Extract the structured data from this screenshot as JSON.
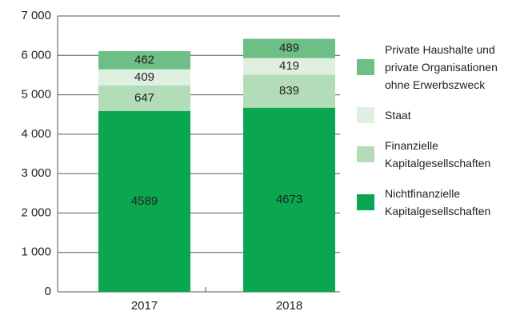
{
  "chart_data": {
    "type": "stacked_bar",
    "categories": [
      "2017",
      "2018"
    ],
    "series": [
      {
        "name": "Nichtfinanzielle Kapitalgesellschaften",
        "color": "#0aa650",
        "values": [
          4589,
          4673
        ]
      },
      {
        "name": "Finanzielle Kapitalgesellschaften",
        "color": "#b3dcb9",
        "values": [
          647,
          839
        ]
      },
      {
        "name": "Staat",
        "color": "#dff0e1",
        "values": [
          409,
          419
        ]
      },
      {
        "name": "Private Haushalte und private Organisationen ohne Erwerbszweck",
        "color": "#6dbf85",
        "values": [
          462,
          489
        ]
      }
    ],
    "ylim": [
      0,
      7000
    ],
    "yticks": [
      0,
      {
        "value": 1000,
        "label": "1 000"
      },
      {
        "value": 2000,
        "label": "2 000"
      },
      {
        "value": 3000,
        "label": "3 000"
      },
      {
        "value": 4000,
        "label": "4 000"
      },
      {
        "value": 5000,
        "label": "5 000"
      },
      {
        "value": 6000,
        "label": "6 000"
      },
      {
        "value": 7000,
        "label": "7 000"
      }
    ],
    "grid": true
  }
}
